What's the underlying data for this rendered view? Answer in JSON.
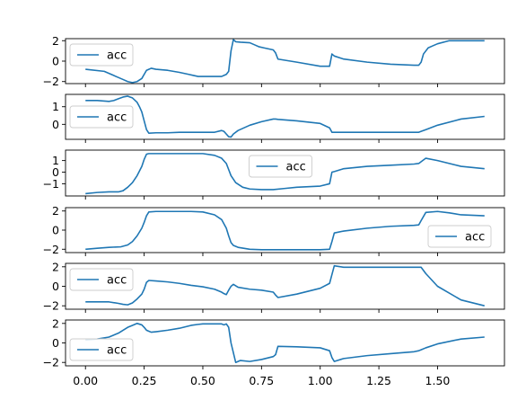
{
  "chart_data": [
    {
      "type": "line",
      "ylim": [
        -2.2,
        2.2
      ],
      "yticks": [
        -2,
        0,
        2
      ],
      "xlim": [
        -0.085,
        1.785
      ],
      "legend": "upper left",
      "series": [
        {
          "name": "acc",
          "color": "#1f77b4",
          "x": [
            0,
            0.08,
            0.1,
            0.12,
            0.14,
            0.16,
            0.18,
            0.2,
            0.22,
            0.24,
            0.25,
            0.26,
            0.27,
            0.28,
            0.3,
            0.35,
            0.4,
            0.42,
            0.44,
            0.46,
            0.48,
            0.5,
            0.55,
            0.58,
            0.59,
            0.6,
            0.61,
            0.62,
            0.63,
            0.64,
            0.66,
            0.7,
            0.72,
            0.74,
            0.76,
            0.78,
            0.8,
            0.81,
            0.82,
            0.9,
            1.0,
            1.04,
            1.05,
            1.06,
            1.1,
            1.2,
            1.3,
            1.4,
            1.42,
            1.43,
            1.44,
            1.46,
            1.48,
            1.5,
            1.55,
            1.6,
            1.7
          ],
          "y": [
            -0.8,
            -1.0,
            -1.2,
            -1.4,
            -1.6,
            -1.8,
            -2.0,
            -2.1,
            -2.0,
            -1.7,
            -1.3,
            -0.9,
            -0.8,
            -0.7,
            -0.8,
            -0.9,
            -1.1,
            -1.2,
            -1.3,
            -1.4,
            -1.5,
            -1.5,
            -1.5,
            -1.5,
            -1.4,
            -1.3,
            -1.0,
            1.0,
            2.1,
            1.9,
            1.85,
            1.8,
            1.6,
            1.4,
            1.3,
            1.2,
            1.1,
            0.8,
            0.2,
            -0.1,
            -0.5,
            -0.5,
            0.7,
            0.5,
            0.2,
            -0.1,
            -0.3,
            -0.4,
            -0.4,
            -0.1,
            0.7,
            1.3,
            1.5,
            1.7,
            2.0,
            2.0,
            2.0
          ]
        }
      ]
    },
    {
      "type": "line",
      "ylim": [
        -0.85,
        1.7
      ],
      "yticks": [
        0,
        1
      ],
      "xlim": [
        -0.085,
        1.785
      ],
      "legend": "center left",
      "series": [
        {
          "name": "acc",
          "color": "#1f77b4",
          "x": [
            0,
            0.05,
            0.1,
            0.12,
            0.14,
            0.16,
            0.18,
            0.19,
            0.2,
            0.22,
            0.23,
            0.24,
            0.25,
            0.26,
            0.27,
            0.3,
            0.35,
            0.4,
            0.45,
            0.5,
            0.55,
            0.58,
            0.59,
            0.6,
            0.61,
            0.62,
            0.63,
            0.65,
            0.7,
            0.75,
            0.8,
            0.81,
            0.82,
            0.9,
            1.0,
            1.04,
            1.05,
            1.06,
            1.1,
            1.2,
            1.3,
            1.4,
            1.42,
            1.43,
            1.45,
            1.5,
            1.6,
            1.7
          ],
          "y": [
            1.35,
            1.35,
            1.3,
            1.35,
            1.45,
            1.55,
            1.6,
            1.55,
            1.5,
            1.25,
            1.0,
            0.7,
            0.2,
            -0.3,
            -0.5,
            -0.48,
            -0.48,
            -0.45,
            -0.45,
            -0.45,
            -0.45,
            -0.35,
            -0.4,
            -0.55,
            -0.7,
            -0.72,
            -0.55,
            -0.35,
            -0.05,
            0.15,
            0.3,
            0.3,
            0.28,
            0.2,
            0.05,
            -0.2,
            -0.45,
            -0.45,
            -0.45,
            -0.45,
            -0.45,
            -0.45,
            -0.45,
            -0.4,
            -0.3,
            -0.05,
            0.3,
            0.45
          ]
        }
      ]
    },
    {
      "type": "line",
      "ylim": [
        -2.05,
        1.9
      ],
      "yticks": [
        -1,
        0,
        1
      ],
      "xlim": [
        -0.085,
        1.785
      ],
      "legend": "upper center",
      "series": [
        {
          "name": "acc",
          "color": "#1f77b4",
          "x": [
            0,
            0.05,
            0.1,
            0.14,
            0.16,
            0.18,
            0.2,
            0.22,
            0.24,
            0.25,
            0.26,
            0.27,
            0.28,
            0.3,
            0.35,
            0.4,
            0.45,
            0.5,
            0.55,
            0.58,
            0.6,
            0.62,
            0.64,
            0.67,
            0.7,
            0.75,
            0.8,
            0.85,
            0.9,
            1.0,
            1.04,
            1.05,
            1.06,
            1.1,
            1.2,
            1.3,
            1.4,
            1.42,
            1.43,
            1.45,
            1.5,
            1.6,
            1.7
          ],
          "y": [
            -1.85,
            -1.75,
            -1.7,
            -1.7,
            -1.6,
            -1.3,
            -0.9,
            -0.3,
            0.5,
            1.1,
            1.55,
            1.6,
            1.6,
            1.6,
            1.6,
            1.6,
            1.6,
            1.6,
            1.45,
            1.2,
            0.75,
            -0.3,
            -0.9,
            -1.3,
            -1.45,
            -1.5,
            -1.5,
            -1.4,
            -1.3,
            -1.2,
            -1.0,
            0.0,
            0.05,
            0.3,
            0.5,
            0.6,
            0.7,
            0.75,
            0.9,
            1.2,
            1.0,
            0.5,
            0.3
          ]
        }
      ]
    },
    {
      "type": "line",
      "ylim": [
        -2.35,
        2.35
      ],
      "yticks": [
        -2,
        0,
        2
      ],
      "xlim": [
        -0.085,
        1.785
      ],
      "legend": "lower right",
      "series": [
        {
          "name": "acc",
          "color": "#1f77b4",
          "x": [
            0,
            0.05,
            0.1,
            0.15,
            0.18,
            0.2,
            0.22,
            0.24,
            0.25,
            0.26,
            0.27,
            0.3,
            0.35,
            0.4,
            0.45,
            0.5,
            0.55,
            0.58,
            0.6,
            0.61,
            0.62,
            0.63,
            0.65,
            0.7,
            0.75,
            0.8,
            0.85,
            0.9,
            1.0,
            1.04,
            1.05,
            1.06,
            1.1,
            1.2,
            1.3,
            1.4,
            1.42,
            1.43,
            1.45,
            1.5,
            1.55,
            1.6,
            1.7
          ],
          "y": [
            -2.0,
            -1.9,
            -1.8,
            -1.75,
            -1.55,
            -1.2,
            -0.6,
            0.2,
            0.8,
            1.5,
            1.9,
            1.95,
            1.95,
            1.95,
            1.95,
            1.9,
            1.6,
            1.1,
            0.2,
            -0.6,
            -1.3,
            -1.6,
            -1.8,
            -2.0,
            -2.05,
            -2.05,
            -2.05,
            -2.05,
            -2.05,
            -2.0,
            -1.2,
            -0.3,
            -0.1,
            0.2,
            0.4,
            0.5,
            0.55,
            1.0,
            1.85,
            1.95,
            1.8,
            1.6,
            1.5
          ]
        }
      ]
    },
    {
      "type": "line",
      "ylim": [
        -2.35,
        2.35
      ],
      "yticks": [
        -2,
        0,
        2
      ],
      "xlim": [
        -0.085,
        1.785
      ],
      "legend": "upper left",
      "series": [
        {
          "name": "acc",
          "color": "#1f77b4",
          "x": [
            0,
            0.05,
            0.1,
            0.14,
            0.16,
            0.18,
            0.2,
            0.22,
            0.24,
            0.25,
            0.26,
            0.27,
            0.3,
            0.35,
            0.4,
            0.45,
            0.5,
            0.55,
            0.58,
            0.59,
            0.6,
            0.61,
            0.62,
            0.63,
            0.65,
            0.7,
            0.75,
            0.8,
            0.81,
            0.82,
            0.9,
            1.0,
            1.04,
            1.05,
            1.06,
            1.1,
            1.2,
            1.3,
            1.4,
            1.42,
            1.43,
            1.45,
            1.5,
            1.6,
            1.7
          ],
          "y": [
            -1.6,
            -1.6,
            -1.6,
            -1.75,
            -1.85,
            -1.9,
            -1.7,
            -1.3,
            -0.8,
            -0.3,
            0.4,
            0.6,
            0.55,
            0.45,
            0.3,
            0.1,
            -0.05,
            -0.3,
            -0.6,
            -0.75,
            -0.85,
            -0.4,
            0.0,
            0.2,
            -0.1,
            -0.3,
            -0.4,
            -0.6,
            -0.9,
            -1.15,
            -0.8,
            -0.2,
            0.3,
            1.2,
            2.1,
            1.95,
            1.95,
            1.95,
            1.95,
            1.95,
            1.95,
            1.3,
            0.0,
            -1.4,
            -2.0
          ]
        }
      ]
    },
    {
      "type": "line",
      "ylim": [
        -2.35,
        2.35
      ],
      "yticks": [
        -2,
        0,
        2
      ],
      "xlim": [
        -0.085,
        1.785
      ],
      "legend": "lower left",
      "series": [
        {
          "name": "acc",
          "color": "#1f77b4",
          "x": [
            0,
            0.05,
            0.1,
            0.14,
            0.16,
            0.18,
            0.2,
            0.22,
            0.24,
            0.25,
            0.26,
            0.27,
            0.28,
            0.3,
            0.35,
            0.4,
            0.45,
            0.48,
            0.5,
            0.55,
            0.58,
            0.59,
            0.6,
            0.61,
            0.62,
            0.63,
            0.64,
            0.66,
            0.7,
            0.75,
            0.8,
            0.81,
            0.82,
            0.9,
            1.0,
            1.04,
            1.05,
            1.06,
            1.1,
            1.2,
            1.3,
            1.4,
            1.42,
            1.43,
            1.45,
            1.5,
            1.6,
            1.7
          ],
          "y": [
            0.3,
            0.4,
            0.6,
            1.0,
            1.3,
            1.6,
            1.8,
            2.0,
            1.85,
            1.6,
            1.3,
            1.2,
            1.1,
            1.15,
            1.3,
            1.5,
            1.8,
            1.9,
            1.95,
            1.95,
            1.95,
            1.85,
            1.95,
            1.6,
            0.0,
            -1.0,
            -2.0,
            -1.8,
            -1.9,
            -1.7,
            -1.4,
            -1.2,
            -0.35,
            -0.4,
            -0.5,
            -0.8,
            -1.5,
            -1.9,
            -1.6,
            -1.3,
            -1.1,
            -0.9,
            -0.8,
            -0.7,
            -0.5,
            -0.1,
            0.4,
            0.6
          ]
        }
      ]
    }
  ],
  "shared_x_axis": {
    "ticks": [
      0.0,
      0.25,
      0.5,
      0.75,
      1.0,
      1.25,
      1.5
    ],
    "tick_labels": [
      "0.00",
      "0.25",
      "0.50",
      "0.75",
      "1.00",
      "1.25",
      "1.50"
    ]
  }
}
